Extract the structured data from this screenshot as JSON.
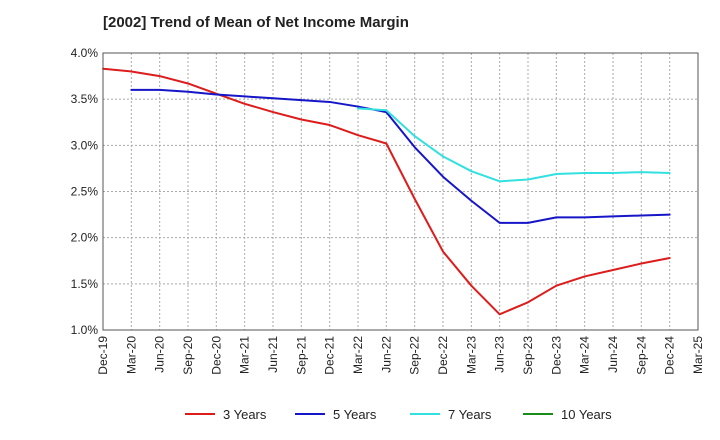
{
  "chart_data": {
    "type": "line",
    "title": "[2002]  Trend of Mean of Net Income Margin",
    "xlabel": "",
    "ylabel": "",
    "x": [
      "Dec-19",
      "Mar-20",
      "Jun-20",
      "Sep-20",
      "Dec-20",
      "Mar-21",
      "Jun-21",
      "Sep-21",
      "Dec-21",
      "Mar-22",
      "Jun-22",
      "Sep-22",
      "Dec-22",
      "Mar-23",
      "Jun-23",
      "Sep-23",
      "Dec-23",
      "Mar-24",
      "Jun-24",
      "Sep-24",
      "Dec-24",
      "Mar-25"
    ],
    "yticks": [
      "1.0%",
      "1.5%",
      "2.0%",
      "2.5%",
      "3.0%",
      "3.5%",
      "4.0%"
    ],
    "ylim": [
      1.0,
      4.0
    ],
    "grid": true,
    "legend_position": "bottom",
    "series": [
      {
        "name": "3 Years",
        "color": "#dd1c1c",
        "values": [
          3.83,
          3.8,
          3.75,
          3.67,
          3.56,
          3.45,
          3.36,
          3.28,
          3.22,
          3.11,
          3.02,
          2.42,
          1.85,
          1.48,
          1.17,
          1.3,
          1.48,
          1.58,
          1.65,
          1.72,
          1.78,
          null
        ]
      },
      {
        "name": "5 Years",
        "color": "#1616c8",
        "values": [
          null,
          3.6,
          3.6,
          3.58,
          3.55,
          3.53,
          3.51,
          3.49,
          3.47,
          3.42,
          3.36,
          2.98,
          2.66,
          2.4,
          2.16,
          2.16,
          2.22,
          2.22,
          2.23,
          2.24,
          2.25,
          null
        ]
      },
      {
        "name": "7 Years",
        "color": "#33e0e0",
        "values": [
          null,
          null,
          null,
          null,
          null,
          null,
          null,
          null,
          null,
          3.4,
          3.38,
          3.1,
          2.88,
          2.72,
          2.61,
          2.63,
          2.69,
          2.7,
          2.7,
          2.71,
          2.7,
          null
        ]
      },
      {
        "name": "10 Years",
        "color": "#1a8c1a",
        "values": [
          null,
          null,
          null,
          null,
          null,
          null,
          null,
          null,
          null,
          null,
          null,
          null,
          null,
          null,
          null,
          null,
          null,
          null,
          null,
          null,
          null,
          null
        ]
      }
    ]
  }
}
